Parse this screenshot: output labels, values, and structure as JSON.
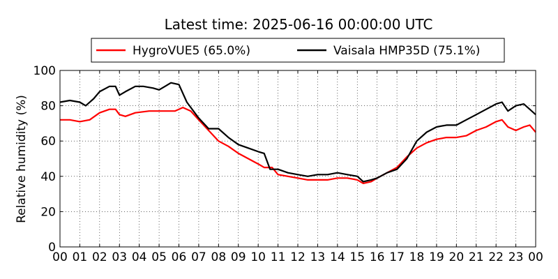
{
  "chart_data": {
    "type": "line",
    "title": "Latest time: 2025-06-16 00:00:00 UTC",
    "ylabel": "Relative humidity (%)",
    "xlabel": "",
    "xlim": [
      0,
      24
    ],
    "ylim": [
      0,
      100
    ],
    "x_tick_labels": [
      "00",
      "01",
      "02",
      "03",
      "04",
      "05",
      "06",
      "07",
      "08",
      "09",
      "10",
      "11",
      "12",
      "13",
      "14",
      "15",
      "16",
      "17",
      "18",
      "19",
      "20",
      "21",
      "22",
      "23",
      "00"
    ],
    "y_tick_labels": [
      "0",
      "20",
      "40",
      "60",
      "80",
      "100"
    ],
    "grid": true,
    "legend_position": "top-center",
    "series": [
      {
        "name": "HygroVUE5 (65.0%)",
        "color": "#ff0000",
        "x": [
          0,
          0.5,
          1,
          1.5,
          2,
          2.5,
          2.8,
          3,
          3.3,
          3.8,
          4.5,
          5,
          5.5,
          5.8,
          6.2,
          6.6,
          7,
          7.5,
          8,
          8.5,
          9,
          9.5,
          10,
          10.3,
          10.7,
          11,
          11.5,
          12,
          12.5,
          13,
          13.5,
          14,
          14.5,
          15,
          15.3,
          15.7,
          16,
          16.5,
          17,
          17.5,
          18,
          18.5,
          19,
          19.5,
          20,
          20.5,
          21,
          21.5,
          22,
          22.3,
          22.6,
          23,
          23.4,
          23.7,
          24
        ],
        "values": [
          72,
          72,
          71,
          72,
          76,
          78,
          78,
          75,
          74,
          76,
          77,
          77,
          77,
          77,
          79,
          77,
          72,
          66,
          60,
          57,
          53,
          50,
          47,
          45,
          45,
          41,
          40,
          39,
          38,
          38,
          38,
          39,
          39,
          38,
          36,
          37,
          39,
          42,
          45,
          51,
          56,
          59,
          61,
          62,
          62,
          63,
          66,
          68,
          71,
          72,
          68,
          66,
          68,
          69,
          65
        ]
      },
      {
        "name": "Vaisala HMP35D (75.1%)",
        "color": "#000000",
        "x": [
          0,
          0.5,
          1,
          1.3,
          1.7,
          2,
          2.5,
          2.8,
          3,
          3.3,
          3.8,
          4.2,
          4.7,
          5,
          5.3,
          5.6,
          6,
          6.4,
          6.8,
          7,
          7.5,
          8,
          8.5,
          9,
          9.5,
          10,
          10.3,
          10.6,
          11,
          11.5,
          12,
          12.5,
          13,
          13.5,
          14,
          14.5,
          15,
          15.3,
          15.7,
          16,
          16.5,
          17,
          17.5,
          18,
          18.5,
          19,
          19.5,
          20,
          20.5,
          21,
          21.5,
          22,
          22.3,
          22.6,
          23,
          23.4,
          23.7,
          24
        ],
        "values": [
          82,
          83,
          82,
          80,
          84,
          88,
          91,
          91,
          86,
          88,
          91,
          91,
          90,
          89,
          91,
          93,
          92,
          82,
          76,
          73,
          67,
          67,
          62,
          58,
          56,
          54,
          53,
          44,
          44,
          42,
          41,
          40,
          41,
          41,
          42,
          41,
          40,
          37,
          38,
          39,
          42,
          44,
          50,
          60,
          65,
          68,
          69,
          69,
          72,
          75,
          78,
          81,
          82,
          77,
          80,
          81,
          78,
          75
        ]
      }
    ]
  }
}
